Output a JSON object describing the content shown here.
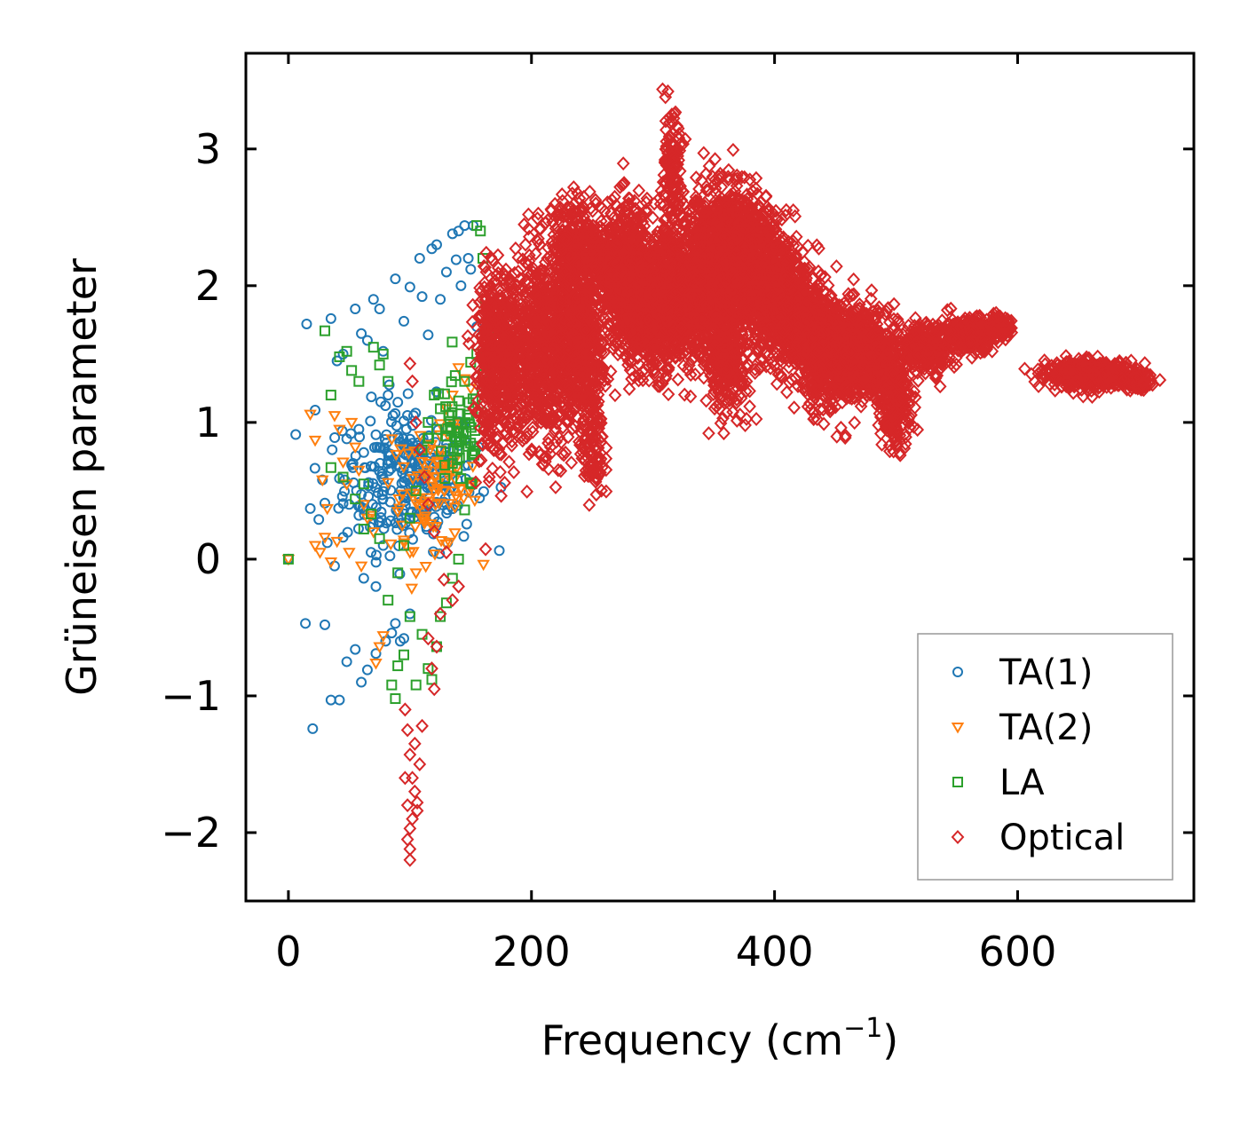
{
  "chart_data": {
    "type": "scatter",
    "title": "",
    "xlabel": "Frequency (cm",
    "xlabel_sup": "−1",
    "xlabel_close": ")",
    "ylabel": "Grüneisen parameter",
    "xlim": [
      -35,
      745
    ],
    "ylim": [
      -2.5,
      3.7
    ],
    "xticks": [
      0,
      200,
      400,
      600
    ],
    "xtick_labels": [
      "0",
      "200",
      "400",
      "600"
    ],
    "yticks": [
      -2,
      -1,
      0,
      1,
      2,
      3
    ],
    "ytick_labels": [
      "−2",
      "−1",
      "0",
      "1",
      "2",
      "3"
    ],
    "legend_position": "lower-right",
    "series": [
      {
        "name": "TA(1)",
        "marker": "circle",
        "color": "#1f77b4",
        "points": [
          [
            0,
            0
          ],
          [
            15,
            1.72
          ],
          [
            22,
            1.09
          ],
          [
            28,
            0.58
          ],
          [
            35,
            1.76
          ],
          [
            40,
            1.45
          ],
          [
            45,
            1.5
          ],
          [
            55,
            1.83
          ],
          [
            60,
            1.65
          ],
          [
            65,
            1.6
          ],
          [
            70,
            1.9
          ],
          [
            75,
            1.83
          ],
          [
            78,
            1.52
          ],
          [
            82,
            1.2
          ],
          [
            88,
            2.05
          ],
          [
            95,
            1.74
          ],
          [
            100,
            1.99
          ],
          [
            108,
            2.2
          ],
          [
            110,
            1.92
          ],
          [
            115,
            1.64
          ],
          [
            118,
            2.27
          ],
          [
            122,
            2.3
          ],
          [
            125,
            1.9
          ],
          [
            130,
            2.1
          ],
          [
            135,
            2.38
          ],
          [
            138,
            2.19
          ],
          [
            140,
            2.4
          ],
          [
            142,
            2.0
          ],
          [
            145,
            2.44
          ],
          [
            148,
            2.2
          ],
          [
            150,
            2.12
          ],
          [
            152,
            2.44
          ],
          [
            155,
            1.7
          ],
          [
            14,
            -0.47
          ],
          [
            20,
            -1.24
          ],
          [
            30,
            -0.48
          ],
          [
            35,
            -1.03
          ],
          [
            42,
            -1.03
          ],
          [
            48,
            -0.75
          ],
          [
            55,
            -0.66
          ],
          [
            60,
            -0.9
          ],
          [
            65,
            -0.81
          ],
          [
            72,
            -0.69
          ],
          [
            80,
            -0.6
          ],
          [
            85,
            -0.54
          ],
          [
            88,
            -0.47
          ],
          [
            92,
            -0.6
          ],
          [
            95,
            -0.58
          ],
          [
            100,
            -0.4
          ],
          [
            18,
            0.37
          ],
          [
            25,
            0.29
          ],
          [
            32,
            0.12
          ],
          [
            38,
            -0.05
          ],
          [
            45,
            0.16
          ],
          [
            50,
            0.4
          ],
          [
            58,
            0.32
          ],
          [
            62,
            -0.14
          ],
          [
            68,
            0.05
          ],
          [
            72,
            -0.2
          ],
          [
            78,
            0.1
          ],
          [
            30,
            0.41
          ],
          [
            36,
            0.8
          ],
          [
            42,
            0.59
          ],
          [
            48,
            0.88
          ],
          [
            52,
            0.69
          ],
          [
            58,
            0.95
          ],
          [
            62,
            0.78
          ],
          [
            66,
            0.56
          ],
          [
            72,
            0.91
          ],
          [
            76,
            1.15
          ],
          [
            82,
            0.72
          ],
          [
            86,
            1.05
          ]
        ],
        "clusters": [
          [
            100,
            0.6,
            45,
            0.45,
            260
          ]
        ]
      },
      {
        "name": "TA(2)",
        "marker": "triangle",
        "color": "#ff7f0e",
        "points": [
          [
            0,
            0
          ],
          [
            18,
            1.06
          ],
          [
            22,
            0.87
          ],
          [
            28,
            0.58
          ],
          [
            32,
            0.37
          ],
          [
            35,
            -0.02
          ],
          [
            38,
            1.05
          ],
          [
            42,
            0.95
          ],
          [
            45,
            0.71
          ],
          [
            48,
            0.55
          ],
          [
            52,
            1.0
          ],
          [
            55,
            0.82
          ],
          [
            58,
            0.65
          ],
          [
            62,
            0.4
          ],
          [
            65,
            0.3
          ],
          [
            70,
            0.2
          ],
          [
            72,
            -0.76
          ],
          [
            75,
            -0.64
          ],
          [
            78,
            -0.56
          ],
          [
            82,
            0.56
          ],
          [
            85,
            0.88
          ],
          [
            90,
            0.35
          ],
          [
            95,
            0.14
          ],
          [
            100,
            0.05
          ],
          [
            105,
            -0.1
          ],
          [
            110,
            0.3
          ],
          [
            115,
            0.45
          ],
          [
            120,
            0.6
          ],
          [
            125,
            0.8
          ],
          [
            130,
            1.1
          ],
          [
            135,
            1.2
          ],
          [
            140,
            1.4
          ],
          [
            145,
            1.32
          ],
          [
            150,
            1.25
          ],
          [
            30,
            0.16
          ],
          [
            40,
            0.13
          ],
          [
            50,
            0.05
          ],
          [
            60,
            -0.05
          ],
          [
            68,
            0.32
          ],
          [
            22,
            0.1
          ],
          [
            26,
            0.05
          ]
        ],
        "clusters": [
          [
            120,
            0.5,
            30,
            0.35,
            90
          ]
        ]
      },
      {
        "name": "LA",
        "marker": "square",
        "color": "#2ca02c",
        "points": [
          [
            0,
            0
          ],
          [
            30,
            1.67
          ],
          [
            35,
            1.2
          ],
          [
            42,
            1.48
          ],
          [
            48,
            1.52
          ],
          [
            52,
            1.38
          ],
          [
            58,
            1.3
          ],
          [
            62,
            0.55
          ],
          [
            70,
            1.55
          ],
          [
            75,
            1.42
          ],
          [
            78,
            1.5
          ],
          [
            82,
            1.3
          ],
          [
            85,
            -0.92
          ],
          [
            88,
            -1.02
          ],
          [
            90,
            -0.78
          ],
          [
            95,
            -0.7
          ],
          [
            100,
            -0.42
          ],
          [
            105,
            -0.92
          ],
          [
            110,
            -0.55
          ],
          [
            115,
            -0.8
          ],
          [
            118,
            -0.88
          ],
          [
            122,
            -0.64
          ],
          [
            125,
            -0.42
          ],
          [
            130,
            -0.32
          ],
          [
            135,
            -0.14
          ],
          [
            140,
            0.0
          ],
          [
            145,
            0.36
          ],
          [
            150,
            0.56
          ],
          [
            155,
            2.44
          ],
          [
            158,
            2.4
          ],
          [
            160,
            2.2
          ],
          [
            162,
            1.9
          ],
          [
            165,
            1.65
          ],
          [
            168,
            1.48
          ],
          [
            35,
            0.67
          ],
          [
            45,
            0.6
          ],
          [
            55,
            0.44
          ],
          [
            62,
            0.22
          ],
          [
            68,
            0.33
          ],
          [
            75,
            0.15
          ],
          [
            82,
            -0.3
          ],
          [
            90,
            -0.1
          ],
          [
            95,
            0.1
          ],
          [
            100,
            0.3
          ],
          [
            105,
            0.5
          ],
          [
            110,
            0.8
          ],
          [
            115,
            1.0
          ],
          [
            120,
            1.2
          ],
          [
            125,
            1.1
          ],
          [
            130,
            0.9
          ],
          [
            135,
            0.7
          ],
          [
            140,
            1.0
          ],
          [
            145,
            1.3
          ],
          [
            150,
            1.44
          ],
          [
            155,
            1.5
          ],
          [
            160,
            1.35
          ],
          [
            165,
            1.3
          ]
        ],
        "clusters": [
          [
            140,
            0.9,
            20,
            0.35,
            60
          ]
        ]
      },
      {
        "name": "Optical",
        "marker": "diamond",
        "color": "#d62728",
        "points": [
          [
            96,
            -1.1
          ],
          [
            98,
            -1.25
          ],
          [
            100,
            -1.43
          ],
          [
            102,
            -1.6
          ],
          [
            104,
            -1.7
          ],
          [
            106,
            -1.84
          ],
          [
            100,
            -1.97
          ],
          [
            98,
            -2.05
          ],
          [
            100,
            -2.12
          ],
          [
            100,
            -2.2
          ],
          [
            108,
            -1.5
          ],
          [
            110,
            -1.22
          ],
          [
            104,
            -1.35
          ],
          [
            96,
            -1.6
          ],
          [
            98,
            -1.8
          ],
          [
            102,
            -1.9
          ],
          [
            106,
            -1.78
          ],
          [
            115,
            -0.58
          ],
          [
            118,
            -0.8
          ],
          [
            120,
            -0.95
          ],
          [
            122,
            -0.64
          ],
          [
            125,
            -0.4
          ],
          [
            128,
            -0.15
          ],
          [
            130,
            0.05
          ],
          [
            135,
            -0.3
          ],
          [
            140,
            -0.2
          ],
          [
            100,
            1.43
          ],
          [
            102,
            1.3
          ],
          [
            105,
            1.0
          ],
          [
            108,
            0.8
          ],
          [
            112,
            0.6
          ],
          [
            115,
            0.4
          ],
          [
            120,
            0.2
          ]
        ],
        "clusters": [
          [
            165,
            1.4,
            8,
            0.55,
            200
          ],
          [
            180,
            1.5,
            18,
            0.55,
            450
          ],
          [
            210,
            1.55,
            18,
            0.6,
            500
          ],
          [
            230,
            1.7,
            16,
            0.65,
            450
          ],
          [
            245,
            1.5,
            12,
            0.5,
            250
          ],
          [
            250,
            0.8,
            8,
            0.3,
            100
          ],
          [
            240,
            2.35,
            20,
            0.25,
            200
          ],
          [
            260,
            2.1,
            20,
            0.3,
            250
          ],
          [
            280,
            2.2,
            18,
            0.35,
            300
          ],
          [
            285,
            1.75,
            18,
            0.3,
            300
          ],
          [
            300,
            1.7,
            16,
            0.3,
            250
          ],
          [
            310,
            2.0,
            20,
            0.35,
            400
          ],
          [
            315,
            2.75,
            8,
            0.4,
            150
          ],
          [
            330,
            1.9,
            20,
            0.35,
            450
          ],
          [
            350,
            2.2,
            22,
            0.4,
            600
          ],
          [
            370,
            2.3,
            20,
            0.35,
            500
          ],
          [
            360,
            1.5,
            18,
            0.35,
            350
          ],
          [
            390,
            2.05,
            22,
            0.35,
            550
          ],
          [
            410,
            1.85,
            22,
            0.35,
            500
          ],
          [
            430,
            1.65,
            22,
            0.3,
            450
          ],
          [
            450,
            1.45,
            22,
            0.3,
            450
          ],
          [
            470,
            1.55,
            20,
            0.25,
            350
          ],
          [
            490,
            1.4,
            18,
            0.25,
            300
          ],
          [
            500,
            1.05,
            10,
            0.2,
            150
          ],
          [
            525,
            1.55,
            18,
            0.15,
            250
          ],
          [
            560,
            1.65,
            20,
            0.1,
            250
          ],
          [
            585,
            1.7,
            8,
            0.06,
            100
          ],
          [
            660,
            1.35,
            30,
            0.08,
            500
          ],
          [
            700,
            1.3,
            8,
            0.05,
            80
          ]
        ]
      }
    ]
  }
}
